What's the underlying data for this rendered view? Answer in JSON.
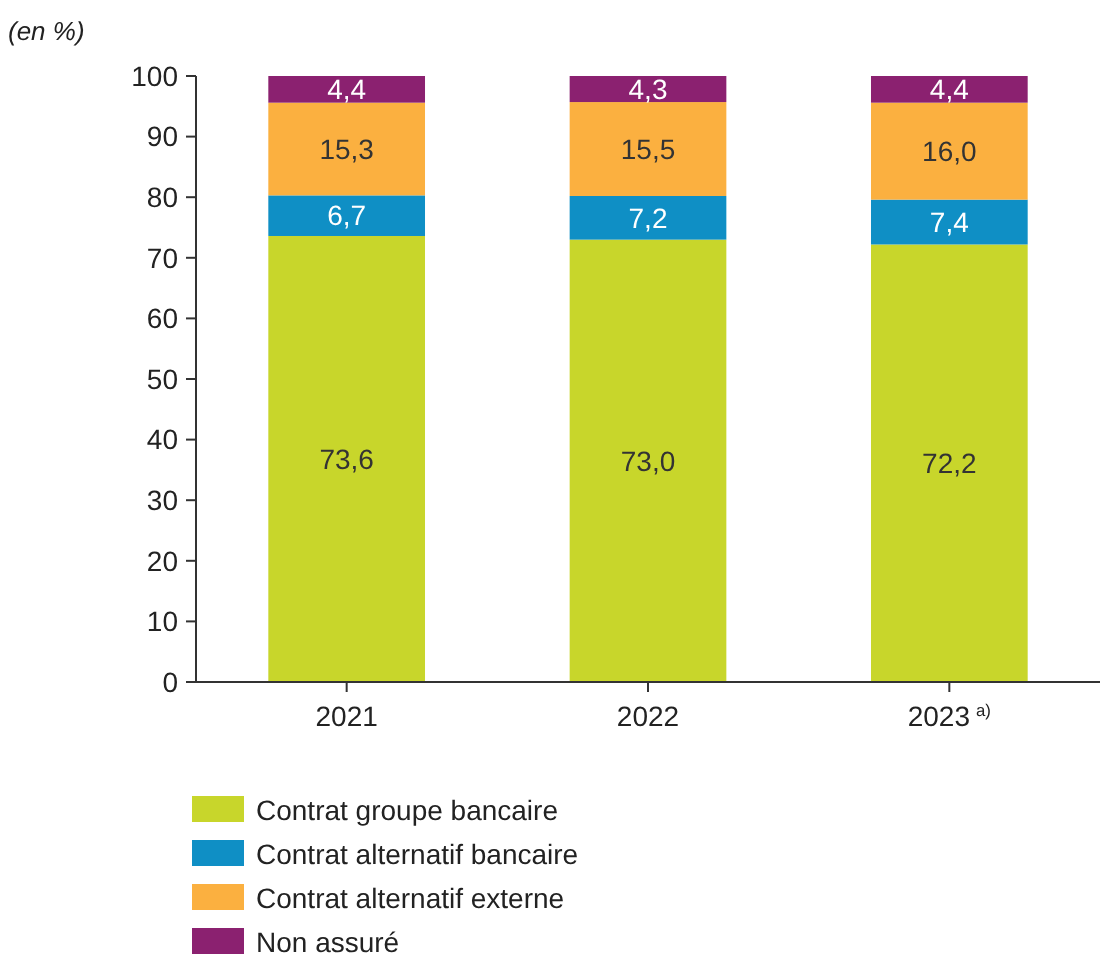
{
  "chart_data": {
    "type": "bar",
    "stacked": true,
    "ylabel": "(en %)",
    "categories": [
      "2021",
      "2022",
      "2023$^{a)}$"
    ],
    "ylim": [
      0,
      100
    ],
    "yticks": [
      0,
      10,
      20,
      30,
      40,
      50,
      60,
      70,
      80,
      90,
      100
    ],
    "legend": "bottom",
    "grid": false,
    "series": [
      {
        "name": "Contrat groupe bancaire",
        "color": "#c8d62b",
        "values": [
          73.6,
          73.0,
          72.2
        ],
        "value_labels": [
          "73,6",
          "73,0",
          "72,2"
        ]
      },
      {
        "name": "Contrat alternatif bancaire",
        "color": "#0f8fc5",
        "values": [
          6.7,
          7.2,
          7.4
        ],
        "value_labels": [
          "6,7",
          "7,2",
          "7,4"
        ]
      },
      {
        "name": "Contrat alternatif externe",
        "color": "#fbb040",
        "values": [
          15.3,
          15.5,
          16.0
        ],
        "value_labels": [
          "15,3",
          "15,5",
          "16,0"
        ]
      },
      {
        "name": "Non assuré",
        "color": "#8b2170",
        "values": [
          4.4,
          4.3,
          4.4
        ],
        "value_labels": [
          "4,4",
          "4,3",
          "4,4"
        ]
      }
    ]
  }
}
